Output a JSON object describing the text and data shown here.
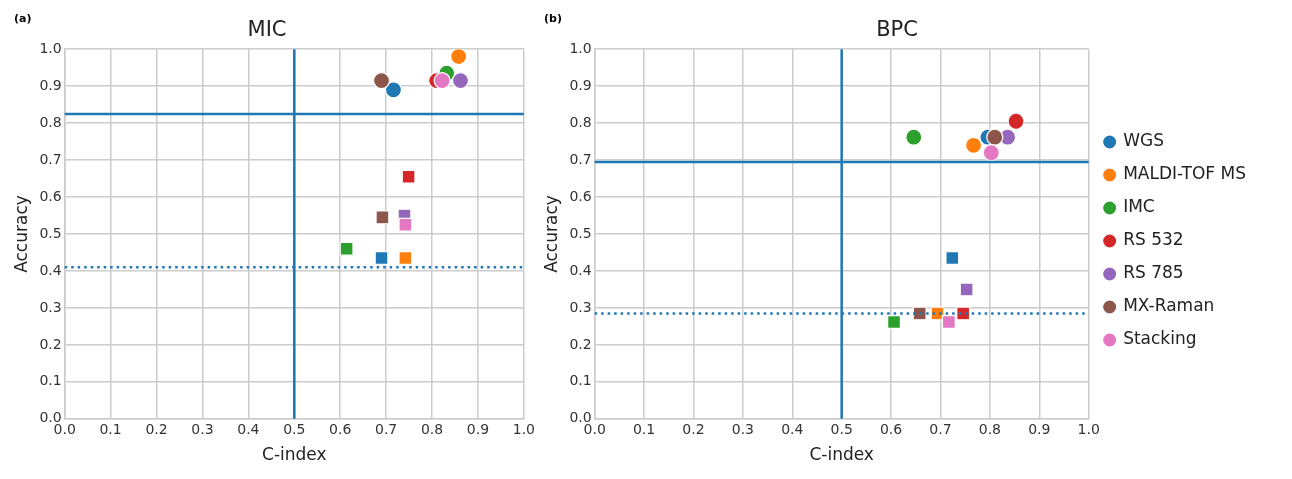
{
  "chart_data": [
    {
      "type": "scatter",
      "title": "MIC",
      "xlabel": "C-index",
      "ylabel": "Accuracy",
      "annotations": [
        "(a)"
      ],
      "xlim": [
        0,
        1
      ],
      "ylim": [
        0,
        1
      ],
      "xticks": [
        {
          "value": 0,
          "label": "0.0"
        },
        {
          "value": 0.1,
          "label": "0.1"
        },
        {
          "value": 0.2,
          "label": "0.2"
        },
        {
          "value": 0.3,
          "label": "0.3"
        },
        {
          "value": 0.4,
          "label": "0.4"
        },
        {
          "value": 0.5,
          "label": "0.5"
        },
        {
          "value": 0.6,
          "label": "0.6"
        },
        {
          "value": 0.7,
          "label": "0.7"
        },
        {
          "value": 0.8,
          "label": "0.8"
        },
        {
          "value": 0.9,
          "label": "0.9"
        },
        {
          "value": 1,
          "label": "1.0"
        }
      ],
      "yticks": [
        {
          "value": 0,
          "label": "0.0"
        },
        {
          "value": 0.1,
          "label": "0.1"
        },
        {
          "value": 0.2,
          "label": "0.2"
        },
        {
          "value": 0.3,
          "label": "0.3"
        },
        {
          "value": 0.4,
          "label": "0.4"
        },
        {
          "value": 0.5,
          "label": "0.5"
        },
        {
          "value": 0.6,
          "label": "0.6"
        },
        {
          "value": 0.7,
          "label": "0.7"
        },
        {
          "value": 0.8,
          "label": "0.8"
        },
        {
          "value": 0.9,
          "label": "0.9"
        },
        {
          "value": 1,
          "label": "1.0"
        }
      ],
      "grid": true,
      "legend": false,
      "ref_lines": [
        {
          "axis": "x",
          "value": 0.5,
          "color": "#1f77b4",
          "line_style": "solid"
        },
        {
          "axis": "y",
          "value": 0.825,
          "color": "#1f77b4",
          "line_style": "solid"
        },
        {
          "axis": "y",
          "value": 0.41,
          "color": "#1f77b4",
          "line_style": "dotted"
        }
      ],
      "series": [
        {
          "color": "#1f77b4",
          "marker": "square",
          "x": [
            0.69
          ],
          "values": [
            0.435
          ]
        },
        {
          "color": "#ff7f0e",
          "marker": "square",
          "x": [
            0.742
          ],
          "values": [
            0.435
          ]
        },
        {
          "color": "#2ca02c",
          "marker": "square",
          "x": [
            0.614
          ],
          "values": [
            0.46
          ]
        },
        {
          "color": "#d62728",
          "marker": "square",
          "x": [
            0.749
          ],
          "values": [
            0.655
          ]
        },
        {
          "color": "#9467bd",
          "marker": "square",
          "x": [
            0.74
          ],
          "values": [
            0.55
          ]
        },
        {
          "color": "#8c564b",
          "marker": "square",
          "x": [
            0.692
          ],
          "values": [
            0.545
          ]
        },
        {
          "color": "#e377c2",
          "marker": "square",
          "x": [
            0.742
          ],
          "values": [
            0.525
          ]
        },
        {
          "color": "#1f77b4",
          "marker": "circle",
          "x": [
            0.716
          ],
          "values": [
            0.89
          ]
        },
        {
          "color": "#ff7f0e",
          "marker": "circle",
          "x": [
            0.858
          ],
          "values": [
            0.98
          ]
        },
        {
          "color": "#2ca02c",
          "marker": "circle",
          "x": [
            0.832
          ],
          "values": [
            0.935
          ]
        },
        {
          "color": "#d62728",
          "marker": "circle",
          "x": [
            0.81
          ],
          "values": [
            0.915
          ]
        },
        {
          "color": "#9467bd",
          "marker": "circle",
          "x": [
            0.862
          ],
          "values": [
            0.915
          ]
        },
        {
          "color": "#8c564b",
          "marker": "circle",
          "x": [
            0.69
          ],
          "values": [
            0.915
          ]
        },
        {
          "color": "#e377c2",
          "marker": "circle",
          "x": [
            0.822
          ],
          "values": [
            0.915
          ]
        }
      ]
    },
    {
      "type": "scatter",
      "title": "BPC",
      "xlabel": "C-index",
      "ylabel": "Accuracy",
      "annotations": [
        "(b)"
      ],
      "xlim": [
        0,
        1
      ],
      "ylim": [
        0,
        1
      ],
      "xticks": [
        {
          "value": 0,
          "label": "0.0"
        },
        {
          "value": 0.1,
          "label": "0.1"
        },
        {
          "value": 0.2,
          "label": "0.2"
        },
        {
          "value": 0.3,
          "label": "0.3"
        },
        {
          "value": 0.4,
          "label": "0.4"
        },
        {
          "value": 0.5,
          "label": "0.5"
        },
        {
          "value": 0.6,
          "label": "0.6"
        },
        {
          "value": 0.7,
          "label": "0.7"
        },
        {
          "value": 0.8,
          "label": "0.8"
        },
        {
          "value": 0.9,
          "label": "0.9"
        },
        {
          "value": 1,
          "label": "1.0"
        }
      ],
      "yticks": [
        {
          "value": 0,
          "label": "0.0"
        },
        {
          "value": 0.1,
          "label": "0.1"
        },
        {
          "value": 0.2,
          "label": "0.2"
        },
        {
          "value": 0.3,
          "label": "0.3"
        },
        {
          "value": 0.4,
          "label": "0.4"
        },
        {
          "value": 0.5,
          "label": "0.5"
        },
        {
          "value": 0.6,
          "label": "0.6"
        },
        {
          "value": 0.7,
          "label": "0.7"
        },
        {
          "value": 0.8,
          "label": "0.8"
        },
        {
          "value": 0.9,
          "label": "0.9"
        },
        {
          "value": 1,
          "label": "1.0"
        }
      ],
      "grid": true,
      "legend": "right",
      "ref_lines": [
        {
          "axis": "x",
          "value": 0.5,
          "color": "#1f77b4",
          "line_style": "solid"
        },
        {
          "axis": "y",
          "value": 0.695,
          "color": "#1f77b4",
          "line_style": "solid"
        },
        {
          "axis": "y",
          "value": 0.285,
          "color": "#1f77b4",
          "line_style": "dotted"
        }
      ],
      "series": [
        {
          "color": "#1f77b4",
          "marker": "square",
          "x": [
            0.724
          ],
          "values": [
            0.435
          ]
        },
        {
          "color": "#ff7f0e",
          "marker": "square",
          "x": [
            0.694
          ],
          "values": [
            0.285
          ]
        },
        {
          "color": "#2ca02c",
          "marker": "square",
          "x": [
            0.606
          ],
          "values": [
            0.262
          ]
        },
        {
          "color": "#d62728",
          "marker": "square",
          "x": [
            0.746
          ],
          "values": [
            0.285
          ]
        },
        {
          "color": "#9467bd",
          "marker": "square",
          "x": [
            0.753
          ],
          "values": [
            0.35
          ]
        },
        {
          "color": "#8c564b",
          "marker": "square",
          "x": [
            0.658
          ],
          "values": [
            0.285
          ]
        },
        {
          "color": "#e377c2",
          "marker": "square",
          "x": [
            0.717
          ],
          "values": [
            0.262
          ]
        },
        {
          "name": "WGS",
          "color": "#1f77b4",
          "marker": "circle",
          "x": [
            0.796
          ],
          "values": [
            0.762
          ]
        },
        {
          "name": "MALDI-TOF MS",
          "color": "#ff7f0e",
          "marker": "circle",
          "x": [
            0.767
          ],
          "values": [
            0.74
          ]
        },
        {
          "name": "IMC",
          "color": "#2ca02c",
          "marker": "circle",
          "x": [
            0.646
          ],
          "values": [
            0.762
          ]
        },
        {
          "name": "RS 532",
          "color": "#d62728",
          "marker": "circle",
          "x": [
            0.853
          ],
          "values": [
            0.805
          ]
        },
        {
          "name": "RS 785",
          "color": "#9467bd",
          "marker": "circle",
          "x": [
            0.836
          ],
          "values": [
            0.762
          ]
        },
        {
          "name": "MX-Raman",
          "color": "#8c564b",
          "marker": "circle",
          "x": [
            0.81
          ],
          "values": [
            0.762
          ]
        },
        {
          "name": "Stacking",
          "color": "#e377c2",
          "marker": "circle",
          "x": [
            0.803
          ],
          "values": [
            0.72
          ]
        }
      ]
    }
  ]
}
